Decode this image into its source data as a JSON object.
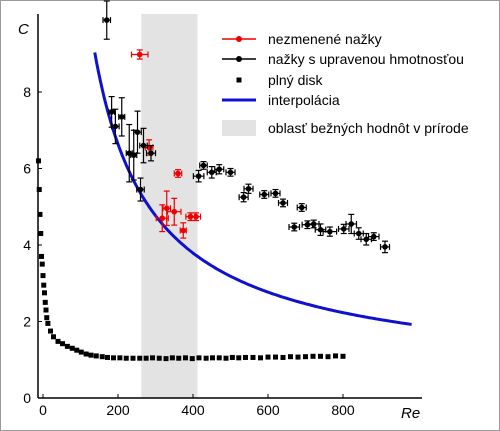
{
  "chart_data": {
    "type": "scatter",
    "xlabel": "Re",
    "ylabel": "C",
    "xlim": [
      -10,
      980
    ],
    "ylim": [
      0,
      10
    ],
    "x_ticks": [
      0,
      200,
      400,
      600,
      800
    ],
    "y_ticks": [
      0,
      2,
      4,
      6,
      8
    ],
    "x_tick_labels": [
      "0",
      "200",
      "400",
      "600",
      "800"
    ],
    "y_tick_labels": [
      "0",
      "2",
      "4",
      "6",
      "8"
    ],
    "grid": false,
    "legend_position": "top-right",
    "highlight_band": {
      "name": "oblasť bežných hodnôt v prírode",
      "x_range": [
        262,
        412
      ],
      "color": "#e3e3e3"
    },
    "interpolation": {
      "name": "interpolácia",
      "color": "#1010d0",
      "x_range": [
        138,
        985
      ],
      "model": "C = 0.35 + 1.55*(Re/1000)^(-0.87)"
    },
    "series": [
      {
        "name": "nezmenené nažky",
        "color": "#ee0000",
        "marker": "circle",
        "points": [
          {
            "x": 258,
            "y": 8.98,
            "xerr": 22,
            "yerr": 0.12
          },
          {
            "x": 283,
            "y": 6.55,
            "xerr": 10,
            "yerr": 0.2
          },
          {
            "x": 360,
            "y": 5.87,
            "xerr": 10,
            "yerr": 0.1
          },
          {
            "x": 330,
            "y": 4.96,
            "xerr": 10,
            "yerr": 0.45
          },
          {
            "x": 318,
            "y": 4.7,
            "xerr": 16,
            "yerr": 0.35
          },
          {
            "x": 350,
            "y": 4.87,
            "xerr": 18,
            "yerr": 0.35
          },
          {
            "x": 374,
            "y": 4.38,
            "xerr": 8,
            "yerr": 0.2
          },
          {
            "x": 393,
            "y": 4.74,
            "xerr": 12,
            "yerr": 0.1
          },
          {
            "x": 408,
            "y": 4.74,
            "xerr": 12,
            "yerr": 0.1
          }
        ]
      },
      {
        "name": "nažky s upravenou hmotnosťou",
        "color": "#000000",
        "marker": "circle",
        "points": [
          {
            "x": 170,
            "y": 9.88,
            "xerr": 10,
            "yerr": 0.5
          },
          {
            "x": 183,
            "y": 7.48,
            "xerr": 8,
            "yerr": 0.4
          },
          {
            "x": 193,
            "y": 7.1,
            "xerr": 10,
            "yerr": 0.45
          },
          {
            "x": 210,
            "y": 7.35,
            "xerr": 8,
            "yerr": 0.5
          },
          {
            "x": 230,
            "y": 6.4,
            "xerr": 8,
            "yerr": 0.75
          },
          {
            "x": 242,
            "y": 6.35,
            "xerr": 8,
            "yerr": 0.65
          },
          {
            "x": 252,
            "y": 6.95,
            "xerr": 10,
            "yerr": 0.55
          },
          {
            "x": 260,
            "y": 5.45,
            "xerr": 10,
            "yerr": 0.3
          },
          {
            "x": 268,
            "y": 6.6,
            "xerr": 10,
            "yerr": 0.45
          },
          {
            "x": 288,
            "y": 6.4,
            "xerr": 12,
            "yerr": 0.2
          },
          {
            "x": 415,
            "y": 5.8,
            "xerr": 14,
            "yerr": 0.15
          },
          {
            "x": 428,
            "y": 6.08,
            "xerr": 10,
            "yerr": 0.1
          },
          {
            "x": 450,
            "y": 5.9,
            "xerr": 12,
            "yerr": 0.15
          },
          {
            "x": 470,
            "y": 5.98,
            "xerr": 12,
            "yerr": 0.12
          },
          {
            "x": 500,
            "y": 5.9,
            "xerr": 12,
            "yerr": 0.1
          },
          {
            "x": 535,
            "y": 5.25,
            "xerr": 12,
            "yerr": 0.12
          },
          {
            "x": 548,
            "y": 5.47,
            "xerr": 12,
            "yerr": 0.12
          },
          {
            "x": 590,
            "y": 5.32,
            "xerr": 12,
            "yerr": 0.1
          },
          {
            "x": 620,
            "y": 5.35,
            "xerr": 12,
            "yerr": 0.1
          },
          {
            "x": 640,
            "y": 5.1,
            "xerr": 12,
            "yerr": 0.1
          },
          {
            "x": 670,
            "y": 4.47,
            "xerr": 14,
            "yerr": 0.1
          },
          {
            "x": 690,
            "y": 4.98,
            "xerr": 12,
            "yerr": 0.1
          },
          {
            "x": 705,
            "y": 4.53,
            "xerr": 14,
            "yerr": 0.1
          },
          {
            "x": 722,
            "y": 4.55,
            "xerr": 14,
            "yerr": 0.1
          },
          {
            "x": 740,
            "y": 4.4,
            "xerr": 14,
            "yerr": 0.15
          },
          {
            "x": 765,
            "y": 4.35,
            "xerr": 18,
            "yerr": 0.12
          },
          {
            "x": 802,
            "y": 4.42,
            "xerr": 14,
            "yerr": 0.12
          },
          {
            "x": 822,
            "y": 4.55,
            "xerr": 14,
            "yerr": 0.25
          },
          {
            "x": 842,
            "y": 4.3,
            "xerr": 12,
            "yerr": 0.15
          },
          {
            "x": 862,
            "y": 4.15,
            "xerr": 14,
            "yerr": 0.15
          },
          {
            "x": 882,
            "y": 4.22,
            "xerr": 14,
            "yerr": 0.1
          },
          {
            "x": 912,
            "y": 3.95,
            "xerr": 12,
            "yerr": 0.15
          }
        ]
      },
      {
        "name": "plný disk",
        "color": "#000000",
        "marker": "square",
        "points": [
          {
            "x": -12,
            "y": 6.2
          },
          {
            "x": -10,
            "y": 5.45
          },
          {
            "x": -8,
            "y": 4.8
          },
          {
            "x": -6,
            "y": 4.3
          },
          {
            "x": -4,
            "y": 3.7
          },
          {
            "x": -2,
            "y": 3.5
          },
          {
            "x": 0,
            "y": 3.2
          },
          {
            "x": 2,
            "y": 2.95
          },
          {
            "x": 4,
            "y": 2.75
          },
          {
            "x": 6,
            "y": 2.5
          },
          {
            "x": 8,
            "y": 2.3
          },
          {
            "x": 10,
            "y": 2.1
          },
          {
            "x": 13,
            "y": 1.95
          },
          {
            "x": 20,
            "y": 1.75
          },
          {
            "x": 28,
            "y": 1.6
          },
          {
            "x": 40,
            "y": 1.48
          },
          {
            "x": 52,
            "y": 1.42
          },
          {
            "x": 65,
            "y": 1.35
          },
          {
            "x": 78,
            "y": 1.3
          },
          {
            "x": 90,
            "y": 1.25
          },
          {
            "x": 102,
            "y": 1.2
          },
          {
            "x": 115,
            "y": 1.15
          },
          {
            "x": 128,
            "y": 1.12
          },
          {
            "x": 142,
            "y": 1.1
          },
          {
            "x": 158,
            "y": 1.08
          },
          {
            "x": 172,
            "y": 1.06
          },
          {
            "x": 188,
            "y": 1.05
          },
          {
            "x": 205,
            "y": 1.05
          },
          {
            "x": 222,
            "y": 1.04
          },
          {
            "x": 240,
            "y": 1.04
          },
          {
            "x": 258,
            "y": 1.04
          },
          {
            "x": 275,
            "y": 1.04
          },
          {
            "x": 292,
            "y": 1.05
          },
          {
            "x": 310,
            "y": 1.04
          },
          {
            "x": 328,
            "y": 1.03
          },
          {
            "x": 345,
            "y": 1.05
          },
          {
            "x": 362,
            "y": 1.04
          },
          {
            "x": 380,
            "y": 1.05
          },
          {
            "x": 398,
            "y": 1.03
          },
          {
            "x": 416,
            "y": 1.05
          },
          {
            "x": 435,
            "y": 1.04
          },
          {
            "x": 452,
            "y": 1.05
          },
          {
            "x": 470,
            "y": 1.05
          },
          {
            "x": 488,
            "y": 1.04
          },
          {
            "x": 505,
            "y": 1.06
          },
          {
            "x": 522,
            "y": 1.05
          },
          {
            "x": 540,
            "y": 1.06
          },
          {
            "x": 560,
            "y": 1.06
          },
          {
            "x": 580,
            "y": 1.05
          },
          {
            "x": 600,
            "y": 1.07
          },
          {
            "x": 620,
            "y": 1.07
          },
          {
            "x": 640,
            "y": 1.06
          },
          {
            "x": 660,
            "y": 1.08
          },
          {
            "x": 680,
            "y": 1.07
          },
          {
            "x": 700,
            "y": 1.08
          },
          {
            "x": 720,
            "y": 1.09
          },
          {
            "x": 740,
            "y": 1.09
          },
          {
            "x": 760,
            "y": 1.08
          },
          {
            "x": 780,
            "y": 1.1
          },
          {
            "x": 800,
            "y": 1.09
          }
        ]
      }
    ],
    "legend": [
      {
        "label": "nezmenené nažky",
        "kind": "marker-line",
        "color": "#ee0000"
      },
      {
        "label": "nažky s upravenou hmotnosťou",
        "kind": "marker-line",
        "color": "#000000"
      },
      {
        "label": "plný disk",
        "kind": "square",
        "color": "#000000"
      },
      {
        "label": "interpolácia",
        "kind": "line",
        "color": "#1010d0"
      },
      {
        "label": "oblasť bežných hodnôt v prírode",
        "kind": "band",
        "color": "#e3e3e3"
      }
    ]
  }
}
